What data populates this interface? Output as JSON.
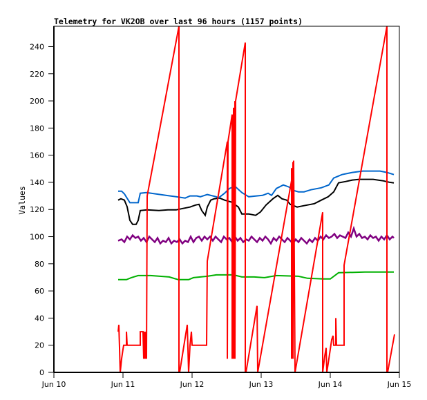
{
  "chart_data": {
    "type": "line",
    "title": "Telemetry for VK2OB over last 96 hours (1157 points)",
    "xlabel": "",
    "ylabel": "Values",
    "x_unit": "days since Jun 10 00:00",
    "xlim": [
      0,
      5
    ],
    "ylim": [
      0,
      255
    ],
    "x_ticks": [
      {
        "value": 0,
        "label": "Jun 10"
      },
      {
        "value": 1,
        "label": "Jun 11"
      },
      {
        "value": 2,
        "label": "Jun 12"
      },
      {
        "value": 3,
        "label": "Jun 13"
      },
      {
        "value": 4,
        "label": "Jun 14"
      },
      {
        "value": 5,
        "label": "Jun 15"
      }
    ],
    "y_ticks": [
      0,
      20,
      40,
      60,
      80,
      100,
      120,
      140,
      160,
      180,
      200,
      220,
      240
    ],
    "grid": false,
    "legend": "none",
    "series": [
      {
        "name": "green",
        "color": "#00b000",
        "points": [
          [
            0.93,
            68.3
          ],
          [
            1.05,
            68.3
          ],
          [
            1.12,
            69.8
          ],
          [
            1.22,
            71.3
          ],
          [
            1.4,
            71.3
          ],
          [
            1.67,
            70.3
          ],
          [
            1.8,
            68.3
          ],
          [
            1.95,
            68.3
          ],
          [
            2.02,
            69.8
          ],
          [
            2.22,
            70.8
          ],
          [
            2.35,
            71.8
          ],
          [
            2.6,
            71.8
          ],
          [
            2.72,
            70.3
          ],
          [
            2.9,
            70.3
          ],
          [
            3.05,
            69.8
          ],
          [
            3.22,
            71.3
          ],
          [
            3.54,
            70.8
          ],
          [
            3.67,
            69.3
          ],
          [
            3.9,
            68.8
          ],
          [
            4.0,
            68.8
          ],
          [
            4.12,
            73.4
          ],
          [
            4.5,
            73.9
          ],
          [
            4.92,
            73.9
          ]
        ]
      },
      {
        "name": "purple",
        "color": "#800080",
        "points": [
          [
            0.93,
            97
          ],
          [
            0.98,
            98
          ],
          [
            1.02,
            96
          ],
          [
            1.06,
            100
          ],
          [
            1.1,
            98
          ],
          [
            1.14,
            101
          ],
          [
            1.18,
            99
          ],
          [
            1.22,
            100
          ],
          [
            1.26,
            97
          ],
          [
            1.3,
            99
          ],
          [
            1.34,
            96
          ],
          [
            1.38,
            100
          ],
          [
            1.42,
            98
          ],
          [
            1.46,
            96
          ],
          [
            1.5,
            99
          ],
          [
            1.54,
            95
          ],
          [
            1.58,
            97
          ],
          [
            1.62,
            96
          ],
          [
            1.66,
            99
          ],
          [
            1.7,
            95
          ],
          [
            1.74,
            97
          ],
          [
            1.78,
            96
          ],
          [
            1.82,
            98
          ],
          [
            1.86,
            95
          ],
          [
            1.9,
            97
          ],
          [
            1.94,
            96
          ],
          [
            1.98,
            100
          ],
          [
            2.02,
            96
          ],
          [
            2.06,
            99
          ],
          [
            2.1,
            100
          ],
          [
            2.14,
            97
          ],
          [
            2.18,
            100
          ],
          [
            2.22,
            98
          ],
          [
            2.26,
            100
          ],
          [
            2.3,
            97
          ],
          [
            2.34,
            100
          ],
          [
            2.38,
            98
          ],
          [
            2.42,
            96
          ],
          [
            2.46,
            100
          ],
          [
            2.5,
            98
          ],
          [
            2.54,
            99
          ],
          [
            2.58,
            96
          ],
          [
            2.62,
            100
          ],
          [
            2.66,
            97
          ],
          [
            2.7,
            99
          ],
          [
            2.74,
            96
          ],
          [
            2.78,
            98
          ],
          [
            2.82,
            97
          ],
          [
            2.86,
            100
          ],
          [
            2.9,
            98
          ],
          [
            2.94,
            96
          ],
          [
            2.98,
            99
          ],
          [
            3.02,
            97
          ],
          [
            3.06,
            100
          ],
          [
            3.1,
            98
          ],
          [
            3.14,
            95
          ],
          [
            3.18,
            99
          ],
          [
            3.22,
            97
          ],
          [
            3.26,
            100
          ],
          [
            3.3,
            98
          ],
          [
            3.34,
            96
          ],
          [
            3.38,
            99
          ],
          [
            3.42,
            97
          ],
          [
            3.46,
            95
          ],
          [
            3.5,
            98
          ],
          [
            3.54,
            96
          ],
          [
            3.58,
            99
          ],
          [
            3.62,
            97
          ],
          [
            3.66,
            95
          ],
          [
            3.7,
            98
          ],
          [
            3.74,
            96
          ],
          [
            3.78,
            99
          ],
          [
            3.82,
            97
          ],
          [
            3.86,
            100
          ],
          [
            3.9,
            98
          ],
          [
            3.94,
            101
          ],
          [
            3.98,
            99
          ],
          [
            4.02,
            100
          ],
          [
            4.06,
            102
          ],
          [
            4.1,
            99
          ],
          [
            4.14,
            101
          ],
          [
            4.18,
            100
          ],
          [
            4.22,
            99
          ],
          [
            4.26,
            103
          ],
          [
            4.3,
            100
          ],
          [
            4.34,
            106
          ],
          [
            4.38,
            100
          ],
          [
            4.42,
            102
          ],
          [
            4.46,
            99
          ],
          [
            4.5,
            100
          ],
          [
            4.54,
            98
          ],
          [
            4.58,
            101
          ],
          [
            4.62,
            99
          ],
          [
            4.66,
            100
          ],
          [
            4.7,
            97
          ],
          [
            4.74,
            100
          ],
          [
            4.78,
            98
          ],
          [
            4.82,
            101
          ],
          [
            4.86,
            98
          ],
          [
            4.9,
            100
          ],
          [
            4.92,
            99
          ]
        ]
      },
      {
        "name": "black",
        "color": "#000000",
        "points": [
          [
            0.93,
            126.9
          ],
          [
            0.97,
            127.9
          ],
          [
            1.02,
            126.9
          ],
          [
            1.06,
            122
          ],
          [
            1.1,
            112
          ],
          [
            1.14,
            109
          ],
          [
            1.19,
            109
          ],
          [
            1.22,
            112
          ],
          [
            1.25,
            119.2
          ],
          [
            1.35,
            119.7
          ],
          [
            1.52,
            119.2
          ],
          [
            1.65,
            119.7
          ],
          [
            1.77,
            119.7
          ],
          [
            1.87,
            120.8
          ],
          [
            1.97,
            121.8
          ],
          [
            2.05,
            123.3
          ],
          [
            2.1,
            123.8
          ],
          [
            2.14,
            119.2
          ],
          [
            2.19,
            115.7
          ],
          [
            2.22,
            121.8
          ],
          [
            2.27,
            126.9
          ],
          [
            2.32,
            127.9
          ],
          [
            2.4,
            128.4
          ],
          [
            2.47,
            126.9
          ],
          [
            2.57,
            125.4
          ],
          [
            2.67,
            121.8
          ],
          [
            2.72,
            116.7
          ],
          [
            2.82,
            116.7
          ],
          [
            2.92,
            115.7
          ],
          [
            2.99,
            118.2
          ],
          [
            3.07,
            123.3
          ],
          [
            3.17,
            127.9
          ],
          [
            3.24,
            130.4
          ],
          [
            3.3,
            127.9
          ],
          [
            3.37,
            126.9
          ],
          [
            3.42,
            123.8
          ],
          [
            3.52,
            121.8
          ],
          [
            3.62,
            122.8
          ],
          [
            3.77,
            124.3
          ],
          [
            3.87,
            126.9
          ],
          [
            3.97,
            129.4
          ],
          [
            4.05,
            133
          ],
          [
            4.12,
            139.6
          ],
          [
            4.22,
            140.6
          ],
          [
            4.32,
            141.7
          ],
          [
            4.42,
            142.2
          ],
          [
            4.62,
            142.2
          ],
          [
            4.77,
            141.1
          ],
          [
            4.85,
            140.1
          ],
          [
            4.92,
            139.6
          ]
        ]
      },
      {
        "name": "blue",
        "color": "#0066cc",
        "points": [
          [
            0.93,
            133.5
          ],
          [
            0.98,
            133.5
          ],
          [
            1.02,
            131.5
          ],
          [
            1.1,
            125
          ],
          [
            1.22,
            125
          ],
          [
            1.25,
            132
          ],
          [
            1.34,
            132.5
          ],
          [
            1.62,
            130.4
          ],
          [
            1.77,
            129.4
          ],
          [
            1.9,
            128.4
          ],
          [
            1.97,
            130
          ],
          [
            2.07,
            130
          ],
          [
            2.12,
            129.4
          ],
          [
            2.22,
            131
          ],
          [
            2.35,
            129.4
          ],
          [
            2.38,
            128.4
          ],
          [
            2.47,
            132
          ],
          [
            2.54,
            135.5
          ],
          [
            2.62,
            137.1
          ],
          [
            2.72,
            132.5
          ],
          [
            2.82,
            129.4
          ],
          [
            2.92,
            129.9
          ],
          [
            3.02,
            130.4
          ],
          [
            3.1,
            132
          ],
          [
            3.15,
            130.4
          ],
          [
            3.22,
            135.5
          ],
          [
            3.32,
            138.1
          ],
          [
            3.4,
            136.6
          ],
          [
            3.47,
            134
          ],
          [
            3.54,
            133
          ],
          [
            3.62,
            133
          ],
          [
            3.72,
            134.5
          ],
          [
            3.87,
            136
          ],
          [
            3.98,
            138.1
          ],
          [
            4.05,
            143.2
          ],
          [
            4.17,
            145.7
          ],
          [
            4.32,
            147.3
          ],
          [
            4.47,
            148.3
          ],
          [
            4.72,
            148.3
          ],
          [
            4.82,
            147.3
          ],
          [
            4.92,
            145.7
          ]
        ]
      },
      {
        "name": "red",
        "color": "#ff0000",
        "points": [
          [
            0.93,
            30
          ],
          [
            0.94,
            35
          ],
          [
            0.95,
            18
          ],
          [
            0.96,
            0
          ],
          [
            0.98,
            10
          ],
          [
            1.0,
            17
          ],
          [
            1.01,
            20
          ],
          [
            1.05,
            20
          ],
          [
            1.05,
            30
          ],
          [
            1.06,
            20
          ],
          [
            1.25,
            20
          ],
          [
            1.25,
            30
          ],
          [
            1.29,
            30
          ],
          [
            1.3,
            10
          ],
          [
            1.31,
            30
          ],
          [
            1.32,
            10
          ],
          [
            1.33,
            30
          ],
          [
            1.34,
            10
          ],
          [
            1.35,
            130
          ],
          [
            1.81,
            255
          ],
          [
            1.81,
            0
          ],
          [
            1.82,
            0
          ],
          [
            1.93,
            35
          ],
          [
            1.95,
            0
          ],
          [
            1.97,
            20
          ],
          [
            1.99,
            30
          ],
          [
            2.0,
            20
          ],
          [
            2.21,
            20
          ],
          [
            2.22,
            82
          ],
          [
            2.51,
            170
          ],
          [
            2.51,
            10
          ],
          [
            2.52,
            170
          ],
          [
            2.58,
            190
          ],
          [
            2.58,
            10
          ],
          [
            2.6,
            195
          ],
          [
            2.6,
            10
          ],
          [
            2.62,
            200
          ],
          [
            2.62,
            10
          ],
          [
            2.63,
            200
          ],
          [
            2.77,
            243
          ],
          [
            2.77,
            0
          ],
          [
            2.78,
            0
          ],
          [
            2.94,
            49
          ],
          [
            2.95,
            0
          ],
          [
            3.47,
            150
          ],
          [
            3.44,
            150
          ],
          [
            3.44,
            10
          ],
          [
            3.46,
            155
          ],
          [
            3.46,
            10
          ],
          [
            3.47,
            156
          ],
          [
            3.49,
            0
          ],
          [
            3.89,
            118
          ],
          [
            3.89,
            0
          ],
          [
            3.92,
            12
          ],
          [
            3.94,
            18
          ],
          [
            3.95,
            0
          ],
          [
            3.98,
            10
          ],
          [
            4.02,
            24
          ],
          [
            4.04,
            27
          ],
          [
            4.05,
            20
          ],
          [
            4.08,
            20
          ],
          [
            4.08,
            40
          ],
          [
            4.09,
            20
          ],
          [
            4.2,
            20
          ],
          [
            4.2,
            79
          ],
          [
            4.82,
            255
          ],
          [
            4.82,
            0
          ],
          [
            4.83,
            0
          ],
          [
            4.93,
            28
          ]
        ]
      }
    ]
  }
}
